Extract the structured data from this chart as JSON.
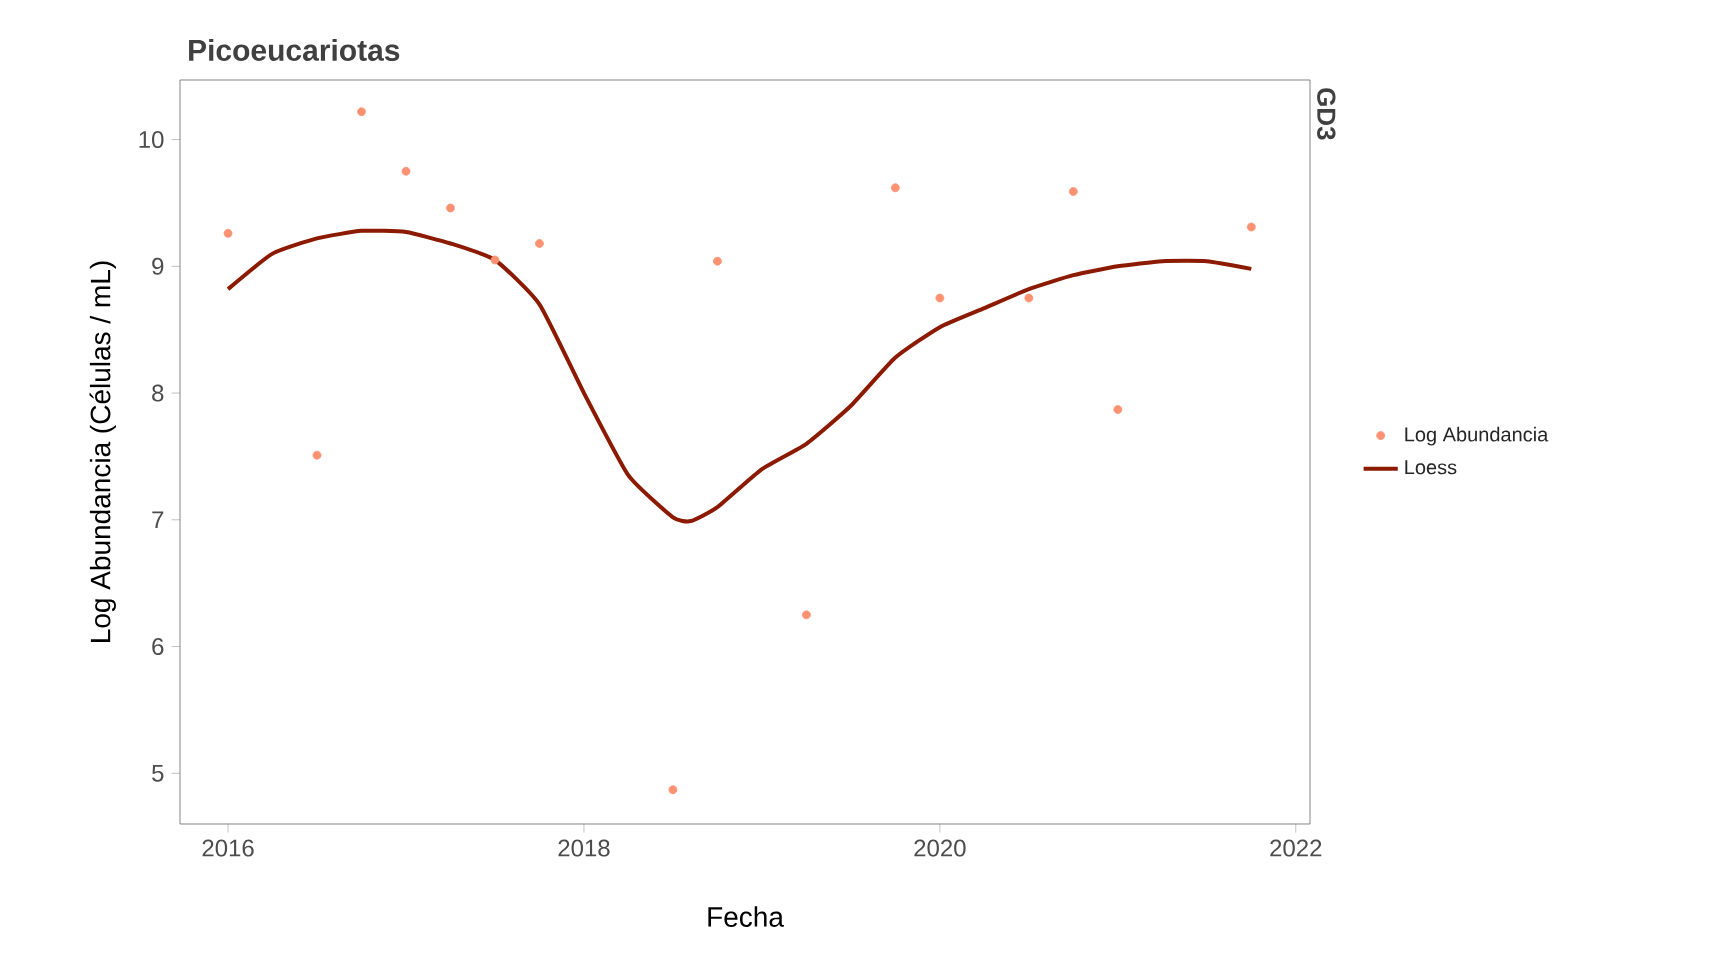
{
  "chart_data": {
    "type": "scatter",
    "title": "Picoeucariotas",
    "xlabel": "Fecha",
    "ylabel": "Log Abundancia (Células / mL)",
    "annotations": [
      "GD3"
    ],
    "xlim": [
      2015.73,
      2022.08
    ],
    "ylim": [
      4.6,
      10.47
    ],
    "xticks": [
      2016,
      2018,
      2020,
      2022
    ],
    "yticks": [
      5,
      6,
      7,
      8,
      9,
      10
    ],
    "legend": "right",
    "grid": false,
    "series": [
      {
        "name": "Log Abundancia",
        "marker": "circle",
        "color": "#fc9272",
        "x": [
          2016.0,
          2016.5,
          2016.75,
          2017.0,
          2017.25,
          2017.5,
          2017.75,
          2018.5,
          2018.75,
          2019.25,
          2019.75,
          2020.0,
          2020.5,
          2020.75,
          2021.0,
          2021.75
        ],
        "values": [
          9.26,
          7.51,
          10.22,
          9.75,
          9.46,
          9.05,
          9.18,
          4.87,
          9.04,
          6.25,
          9.62,
          8.75,
          8.75,
          9.59,
          7.87,
          9.31
        ]
      },
      {
        "name": "Loess",
        "type": "line",
        "marker": "none",
        "color": "#8b1a00",
        "x": [
          2016.0,
          2016.25,
          2016.5,
          2016.75,
          2017.0,
          2017.25,
          2017.5,
          2017.75,
          2018.0,
          2018.25,
          2018.5,
          2018.6,
          2018.75,
          2019.0,
          2019.25,
          2019.5,
          2019.75,
          2020.0,
          2020.25,
          2020.5,
          2020.75,
          2021.0,
          2021.25,
          2021.5,
          2021.75
        ],
        "values": [
          8.82,
          9.1,
          9.22,
          9.28,
          9.27,
          9.18,
          9.05,
          8.7,
          8.0,
          7.35,
          7.02,
          6.99,
          7.1,
          7.4,
          7.6,
          7.9,
          8.28,
          8.52,
          8.67,
          8.82,
          8.93,
          9.0,
          9.04,
          9.04,
          8.98
        ]
      }
    ]
  }
}
